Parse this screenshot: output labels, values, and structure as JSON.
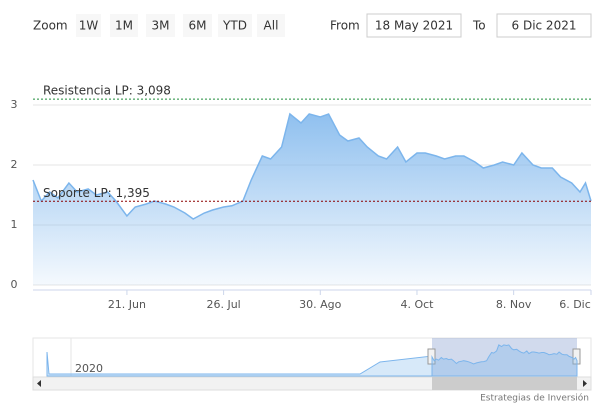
{
  "range_selector": {
    "zoom": "Zoom",
    "buttons": [
      "1W",
      "1M",
      "3M",
      "6M",
      "YTD",
      "All"
    ],
    "from_label": "From",
    "from": "18 May 2021",
    "to_label": "To",
    "to": "6 Dic 2021"
  },
  "navigator": {
    "label": "2020"
  },
  "credit": "Estrategias de Inversión",
  "chart_data": {
    "type": "area",
    "x": [
      "2021-05-18",
      "2021-05-21",
      "2021-05-24",
      "2021-05-27",
      "2021-05-31",
      "2021-06-03",
      "2021-06-07",
      "2021-06-10",
      "2021-06-14",
      "2021-06-17",
      "2021-06-21",
      "2021-06-24",
      "2021-06-28",
      "2021-07-01",
      "2021-07-05",
      "2021-07-08",
      "2021-07-12",
      "2021-07-15",
      "2021-07-19",
      "2021-07-22",
      "2021-07-26",
      "2021-07-29",
      "2021-08-02",
      "2021-08-05",
      "2021-08-09",
      "2021-08-12",
      "2021-08-16",
      "2021-08-19",
      "2021-08-23",
      "2021-08-26",
      "2021-08-30",
      "2021-09-02",
      "2021-09-06",
      "2021-09-09",
      "2021-09-13",
      "2021-09-16",
      "2021-09-20",
      "2021-09-23",
      "2021-09-27",
      "2021-09-30",
      "2021-10-04",
      "2021-10-07",
      "2021-10-11",
      "2021-10-14",
      "2021-10-18",
      "2021-10-21",
      "2021-10-25",
      "2021-10-28",
      "2021-11-01",
      "2021-11-04",
      "2021-11-08",
      "2021-11-11",
      "2021-11-15",
      "2021-11-18",
      "2021-11-22",
      "2021-11-25",
      "2021-11-29",
      "2021-12-02",
      "2021-12-04",
      "2021-12-06"
    ],
    "series": [
      {
        "color": "#7cb5ec",
        "values": [
          1.75,
          1.4,
          1.55,
          1.45,
          1.7,
          1.55,
          1.6,
          1.5,
          1.55,
          1.4,
          1.15,
          1.3,
          1.35,
          1.4,
          1.35,
          1.3,
          1.2,
          1.1,
          1.2,
          1.25,
          1.3,
          1.32,
          1.4,
          1.75,
          2.15,
          2.1,
          2.3,
          2.85,
          2.7,
          2.85,
          2.8,
          2.85,
          2.5,
          2.4,
          2.45,
          2.3,
          2.15,
          2.1,
          2.3,
          2.05,
          2.2,
          2.2,
          2.15,
          2.1,
          2.15,
          2.15,
          2.05,
          1.95,
          2.0,
          2.05,
          2.0,
          2.2,
          2.0,
          1.95,
          1.95,
          1.8,
          1.7,
          1.55,
          1.7,
          1.4
        ]
      }
    ],
    "xlim": [
      "2021-05-18",
      "2021-12-06"
    ],
    "xticks": [
      {
        "value": "2021-06-21",
        "label": "21. Jun"
      },
      {
        "value": "2021-07-26",
        "label": "26. Jul"
      },
      {
        "value": "2021-08-30",
        "label": "30. Ago"
      },
      {
        "value": "2021-10-04",
        "label": "4. Oct"
      },
      {
        "value": "2021-11-08",
        "label": "8. Nov"
      },
      {
        "value": "2021-12-06",
        "label": "6. Dic"
      }
    ],
    "ylim": [
      0,
      3.3
    ],
    "yticks": [
      0,
      1,
      2,
      3
    ],
    "grid": true,
    "plot_lines": [
      {
        "value": 3.098,
        "label": "Resistencia LP: 3,098",
        "color": "#1e8c3a"
      },
      {
        "value": 1.395,
        "label": "Soporte LP: 1,395",
        "color": "#8b0000"
      }
    ]
  }
}
